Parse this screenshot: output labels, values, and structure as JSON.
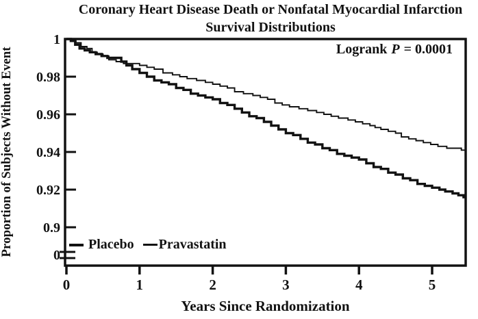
{
  "title": {
    "line1": "Coronary Heart Disease Death or Nonfatal Myocardial Infarction",
    "line2": "Survival Distributions"
  },
  "annotation": {
    "prefix": "Logrank",
    "p_symbol": "P",
    "suffix": "= 0.0001"
  },
  "axes": {
    "y_label": "Proportion of Subjects Without Event",
    "x_label": "Years Since Randomization"
  },
  "legend": {
    "items": [
      {
        "label": "Placebo",
        "line_style": "thick"
      },
      {
        "label": "Pravastatin",
        "line_style": "thin"
      }
    ]
  },
  "colors": {
    "ink": "#121212",
    "background": "#ffffff"
  },
  "chart_data": {
    "type": "line",
    "subtype": "kaplan-meier-step",
    "title": "Coronary Heart Disease Death or Nonfatal Myocardial Infarction Survival Distributions",
    "xlabel": "Years Since Randomization",
    "ylabel": "Proportion of Subjects Without Event",
    "annotation": "Logrank P = 0.0001",
    "xlim": [
      0,
      5.47
    ],
    "ylim_display": [
      0.9,
      1.0
    ],
    "axis_break_to_zero": true,
    "grid": false,
    "legend_position": "inside-bottom-left",
    "x_ticks": [
      0,
      1,
      2,
      3,
      4,
      5
    ],
    "y_ticks": [
      1,
      0.98,
      0.96,
      0.94,
      0.92,
      0.9,
      0
    ],
    "y_tick_labels": [
      "1",
      "0.98",
      "0.96",
      "0.94",
      "0.92",
      "0.9",
      "0"
    ],
    "series": [
      {
        "name": "Placebo",
        "weight": "thick",
        "points": [
          [
            0,
            1.0
          ],
          [
            0.06,
            0.999
          ],
          [
            0.12,
            0.997
          ],
          [
            0.18,
            0.995
          ],
          [
            0.25,
            0.994
          ],
          [
            0.32,
            0.993
          ],
          [
            0.4,
            0.992
          ],
          [
            0.48,
            0.991
          ],
          [
            0.56,
            0.99
          ],
          [
            0.66,
            0.99
          ],
          [
            0.75,
            0.988
          ],
          [
            0.82,
            0.986
          ],
          [
            0.9,
            0.984
          ],
          [
            1.0,
            0.982
          ],
          [
            1.1,
            0.98
          ],
          [
            1.2,
            0.978
          ],
          [
            1.3,
            0.977
          ],
          [
            1.4,
            0.976
          ],
          [
            1.5,
            0.974
          ],
          [
            1.6,
            0.973
          ],
          [
            1.7,
            0.971
          ],
          [
            1.8,
            0.97
          ],
          [
            1.9,
            0.969
          ],
          [
            2.0,
            0.968
          ],
          [
            2.1,
            0.966
          ],
          [
            2.2,
            0.965
          ],
          [
            2.3,
            0.963
          ],
          [
            2.4,
            0.961
          ],
          [
            2.5,
            0.959
          ],
          [
            2.6,
            0.958
          ],
          [
            2.7,
            0.956
          ],
          [
            2.8,
            0.954
          ],
          [
            2.9,
            0.952
          ],
          [
            3.0,
            0.95
          ],
          [
            3.1,
            0.949
          ],
          [
            3.2,
            0.947
          ],
          [
            3.3,
            0.945
          ],
          [
            3.4,
            0.944
          ],
          [
            3.5,
            0.942
          ],
          [
            3.6,
            0.941
          ],
          [
            3.7,
            0.939
          ],
          [
            3.8,
            0.938
          ],
          [
            3.9,
            0.937
          ],
          [
            4.0,
            0.936
          ],
          [
            4.1,
            0.934
          ],
          [
            4.2,
            0.932
          ],
          [
            4.3,
            0.931
          ],
          [
            4.4,
            0.929
          ],
          [
            4.5,
            0.928
          ],
          [
            4.6,
            0.926
          ],
          [
            4.7,
            0.925
          ],
          [
            4.8,
            0.923
          ],
          [
            4.9,
            0.922
          ],
          [
            5.0,
            0.921
          ],
          [
            5.1,
            0.92
          ],
          [
            5.18,
            0.919
          ],
          [
            5.28,
            0.918
          ],
          [
            5.36,
            0.917
          ],
          [
            5.43,
            0.916
          ],
          [
            5.47,
            0.916
          ]
        ]
      },
      {
        "name": "Pravastatin",
        "weight": "thin",
        "points": [
          [
            0,
            1.0
          ],
          [
            0.06,
            0.999
          ],
          [
            0.13,
            0.998
          ],
          [
            0.2,
            0.996
          ],
          [
            0.28,
            0.995
          ],
          [
            0.35,
            0.993
          ],
          [
            0.42,
            0.992
          ],
          [
            0.5,
            0.991
          ],
          [
            0.58,
            0.989
          ],
          [
            0.68,
            0.988
          ],
          [
            0.78,
            0.987
          ],
          [
            0.9,
            0.987
          ],
          [
            1.0,
            0.986
          ],
          [
            1.1,
            0.985
          ],
          [
            1.2,
            0.984
          ],
          [
            1.32,
            0.982
          ],
          [
            1.45,
            0.981
          ],
          [
            1.55,
            0.98
          ],
          [
            1.65,
            0.979
          ],
          [
            1.78,
            0.978
          ],
          [
            1.9,
            0.977
          ],
          [
            2.0,
            0.976
          ],
          [
            2.1,
            0.975
          ],
          [
            2.2,
            0.974
          ],
          [
            2.3,
            0.972
          ],
          [
            2.42,
            0.971
          ],
          [
            2.55,
            0.97
          ],
          [
            2.65,
            0.969
          ],
          [
            2.75,
            0.968
          ],
          [
            2.85,
            0.966
          ],
          [
            2.95,
            0.965
          ],
          [
            3.05,
            0.964
          ],
          [
            3.18,
            0.963
          ],
          [
            3.3,
            0.962
          ],
          [
            3.42,
            0.961
          ],
          [
            3.52,
            0.96
          ],
          [
            3.62,
            0.959
          ],
          [
            3.72,
            0.958
          ],
          [
            3.85,
            0.957
          ],
          [
            3.95,
            0.956
          ],
          [
            4.05,
            0.955
          ],
          [
            4.15,
            0.954
          ],
          [
            4.22,
            0.953
          ],
          [
            4.3,
            0.952
          ],
          [
            4.4,
            0.951
          ],
          [
            4.5,
            0.95
          ],
          [
            4.58,
            0.948
          ],
          [
            4.68,
            0.947
          ],
          [
            4.78,
            0.946
          ],
          [
            4.88,
            0.945
          ],
          [
            4.98,
            0.944
          ],
          [
            5.08,
            0.943
          ],
          [
            5.2,
            0.942
          ],
          [
            5.32,
            0.942
          ],
          [
            5.4,
            0.941
          ],
          [
            5.47,
            0.941
          ]
        ]
      }
    ]
  }
}
